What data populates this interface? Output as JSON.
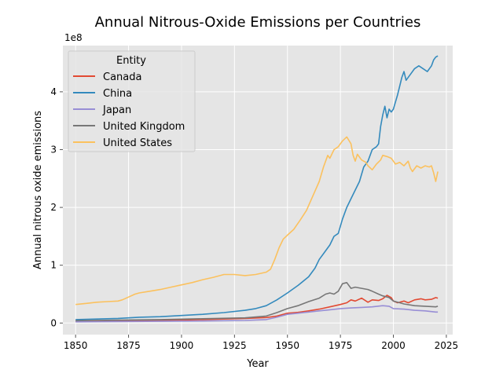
{
  "chart_data": {
    "type": "line",
    "title": "Annual Nitrous-Oxide Emissions per Countries",
    "xlabel": "Year",
    "ylabel": "Annual nitrous oxide emissions",
    "y_offset_label": "1e8",
    "xlim": [
      1844,
      2028
    ],
    "ylim": [
      -20000000,
      480000000
    ],
    "x_ticks": [
      1850,
      1875,
      1900,
      1925,
      1950,
      1975,
      2000,
      2025
    ],
    "x_tick_labels": [
      "1850",
      "1875",
      "1900",
      "1925",
      "1950",
      "1975",
      "2000",
      "2025"
    ],
    "y_ticks": [
      0,
      100000000,
      200000000,
      300000000,
      400000000
    ],
    "y_tick_labels": [
      "0",
      "1",
      "2",
      "3",
      "4"
    ],
    "grid": true,
    "legend": {
      "title": "Entity",
      "placement": "top-left"
    },
    "series": [
      {
        "name": "Canada",
        "color": "#E24A33",
        "points": [
          [
            1850,
            3000000
          ],
          [
            1870,
            3500000
          ],
          [
            1890,
            4500000
          ],
          [
            1910,
            6000000
          ],
          [
            1930,
            8000000
          ],
          [
            1940,
            9500000
          ],
          [
            1945,
            12000000
          ],
          [
            1950,
            17000000
          ],
          [
            1955,
            18500000
          ],
          [
            1960,
            21000000
          ],
          [
            1965,
            24000000
          ],
          [
            1970,
            28000000
          ],
          [
            1975,
            32000000
          ],
          [
            1978,
            35000000
          ],
          [
            1980,
            40000000
          ],
          [
            1982,
            38000000
          ],
          [
            1985,
            43000000
          ],
          [
            1988,
            36000000
          ],
          [
            1990,
            40000000
          ],
          [
            1993,
            39000000
          ],
          [
            1995,
            42000000
          ],
          [
            1997,
            48000000
          ],
          [
            1999,
            44000000
          ],
          [
            2000,
            38000000
          ],
          [
            2002,
            35000000
          ],
          [
            2005,
            38000000
          ],
          [
            2007,
            35000000
          ],
          [
            2010,
            40000000
          ],
          [
            2013,
            42000000
          ],
          [
            2015,
            40000000
          ],
          [
            2018,
            41000000
          ],
          [
            2020,
            44000000
          ],
          [
            2021,
            43000000
          ]
        ]
      },
      {
        "name": "China",
        "color": "#348ABD",
        "points": [
          [
            1850,
            6000000
          ],
          [
            1870,
            8000000
          ],
          [
            1880,
            10000000
          ],
          [
            1890,
            11000000
          ],
          [
            1900,
            13000000
          ],
          [
            1910,
            15000000
          ],
          [
            1920,
            18000000
          ],
          [
            1930,
            22000000
          ],
          [
            1935,
            25000000
          ],
          [
            1940,
            30000000
          ],
          [
            1945,
            40000000
          ],
          [
            1950,
            52000000
          ],
          [
            1955,
            65000000
          ],
          [
            1960,
            80000000
          ],
          [
            1963,
            95000000
          ],
          [
            1965,
            110000000
          ],
          [
            1967,
            120000000
          ],
          [
            1970,
            135000000
          ],
          [
            1972,
            150000000
          ],
          [
            1974,
            155000000
          ],
          [
            1976,
            180000000
          ],
          [
            1978,
            200000000
          ],
          [
            1980,
            215000000
          ],
          [
            1982,
            230000000
          ],
          [
            1984,
            245000000
          ],
          [
            1986,
            270000000
          ],
          [
            1988,
            280000000
          ],
          [
            1990,
            300000000
          ],
          [
            1992,
            305000000
          ],
          [
            1993,
            310000000
          ],
          [
            1994,
            340000000
          ],
          [
            1995,
            360000000
          ],
          [
            1996,
            375000000
          ],
          [
            1997,
            355000000
          ],
          [
            1998,
            370000000
          ],
          [
            1999,
            365000000
          ],
          [
            2000,
            370000000
          ],
          [
            2002,
            395000000
          ],
          [
            2004,
            425000000
          ],
          [
            2005,
            435000000
          ],
          [
            2006,
            420000000
          ],
          [
            2008,
            430000000
          ],
          [
            2010,
            440000000
          ],
          [
            2012,
            445000000
          ],
          [
            2014,
            440000000
          ],
          [
            2016,
            435000000
          ],
          [
            2018,
            445000000
          ],
          [
            2019,
            455000000
          ],
          [
            2020,
            460000000
          ],
          [
            2021,
            462000000
          ]
        ]
      },
      {
        "name": "Japan",
        "color": "#988ED5",
        "points": [
          [
            1850,
            2000000
          ],
          [
            1870,
            2500000
          ],
          [
            1890,
            3000000
          ],
          [
            1910,
            3500000
          ],
          [
            1930,
            4500000
          ],
          [
            1940,
            6000000
          ],
          [
            1945,
            10000000
          ],
          [
            1950,
            15000000
          ],
          [
            1955,
            17000000
          ],
          [
            1960,
            19000000
          ],
          [
            1965,
            21000000
          ],
          [
            1970,
            23000000
          ],
          [
            1975,
            25000000
          ],
          [
            1980,
            26000000
          ],
          [
            1985,
            27000000
          ],
          [
            1990,
            28000000
          ],
          [
            1995,
            30000000
          ],
          [
            1998,
            29000000
          ],
          [
            2000,
            25000000
          ],
          [
            2005,
            24000000
          ],
          [
            2010,
            22000000
          ],
          [
            2015,
            21000000
          ],
          [
            2020,
            19000000
          ],
          [
            2021,
            19000000
          ]
        ]
      },
      {
        "name": "United Kingdom",
        "color": "#777777",
        "points": [
          [
            1850,
            4000000
          ],
          [
            1870,
            5000000
          ],
          [
            1890,
            6000000
          ],
          [
            1910,
            7500000
          ],
          [
            1930,
            9000000
          ],
          [
            1940,
            12000000
          ],
          [
            1945,
            18000000
          ],
          [
            1950,
            25000000
          ],
          [
            1955,
            30000000
          ],
          [
            1960,
            37000000
          ],
          [
            1965,
            43000000
          ],
          [
            1968,
            50000000
          ],
          [
            1970,
            52000000
          ],
          [
            1972,
            50000000
          ],
          [
            1974,
            55000000
          ],
          [
            1976,
            68000000
          ],
          [
            1978,
            70000000
          ],
          [
            1980,
            60000000
          ],
          [
            1982,
            62000000
          ],
          [
            1985,
            60000000
          ],
          [
            1988,
            58000000
          ],
          [
            1990,
            55000000
          ],
          [
            1993,
            50000000
          ],
          [
            1995,
            47000000
          ],
          [
            1998,
            44000000
          ],
          [
            2000,
            38000000
          ],
          [
            2003,
            35000000
          ],
          [
            2005,
            33000000
          ],
          [
            2010,
            30000000
          ],
          [
            2015,
            29000000
          ],
          [
            2020,
            28000000
          ],
          [
            2021,
            29000000
          ]
        ]
      },
      {
        "name": "United States",
        "color": "#FBC15E",
        "points": [
          [
            1850,
            32000000
          ],
          [
            1855,
            34000000
          ],
          [
            1860,
            36000000
          ],
          [
            1865,
            37000000
          ],
          [
            1870,
            38000000
          ],
          [
            1872,
            40000000
          ],
          [
            1875,
            45000000
          ],
          [
            1878,
            50000000
          ],
          [
            1880,
            52000000
          ],
          [
            1885,
            55000000
          ],
          [
            1890,
            58000000
          ],
          [
            1895,
            62000000
          ],
          [
            1900,
            66000000
          ],
          [
            1905,
            70000000
          ],
          [
            1910,
            75000000
          ],
          [
            1915,
            79000000
          ],
          [
            1920,
            84000000
          ],
          [
            1925,
            84000000
          ],
          [
            1930,
            82000000
          ],
          [
            1935,
            84000000
          ],
          [
            1940,
            88000000
          ],
          [
            1942,
            93000000
          ],
          [
            1944,
            110000000
          ],
          [
            1946,
            130000000
          ],
          [
            1948,
            145000000
          ],
          [
            1950,
            152000000
          ],
          [
            1953,
            162000000
          ],
          [
            1956,
            178000000
          ],
          [
            1959,
            195000000
          ],
          [
            1962,
            220000000
          ],
          [
            1965,
            245000000
          ],
          [
            1967,
            270000000
          ],
          [
            1969,
            290000000
          ],
          [
            1970,
            285000000
          ],
          [
            1972,
            300000000
          ],
          [
            1974,
            305000000
          ],
          [
            1976,
            315000000
          ],
          [
            1978,
            322000000
          ],
          [
            1980,
            310000000
          ],
          [
            1981,
            290000000
          ],
          [
            1982,
            280000000
          ],
          [
            1983,
            292000000
          ],
          [
            1985,
            282000000
          ],
          [
            1987,
            278000000
          ],
          [
            1988,
            272000000
          ],
          [
            1990,
            265000000
          ],
          [
            1992,
            275000000
          ],
          [
            1994,
            282000000
          ],
          [
            1995,
            290000000
          ],
          [
            1997,
            288000000
          ],
          [
            1999,
            285000000
          ],
          [
            2001,
            275000000
          ],
          [
            2003,
            278000000
          ],
          [
            2005,
            272000000
          ],
          [
            2007,
            280000000
          ],
          [
            2008,
            268000000
          ],
          [
            2009,
            262000000
          ],
          [
            2011,
            272000000
          ],
          [
            2013,
            268000000
          ],
          [
            2015,
            272000000
          ],
          [
            2017,
            270000000
          ],
          [
            2018,
            272000000
          ],
          [
            2019,
            260000000
          ],
          [
            2020,
            245000000
          ],
          [
            2021,
            262000000
          ]
        ]
      }
    ]
  }
}
